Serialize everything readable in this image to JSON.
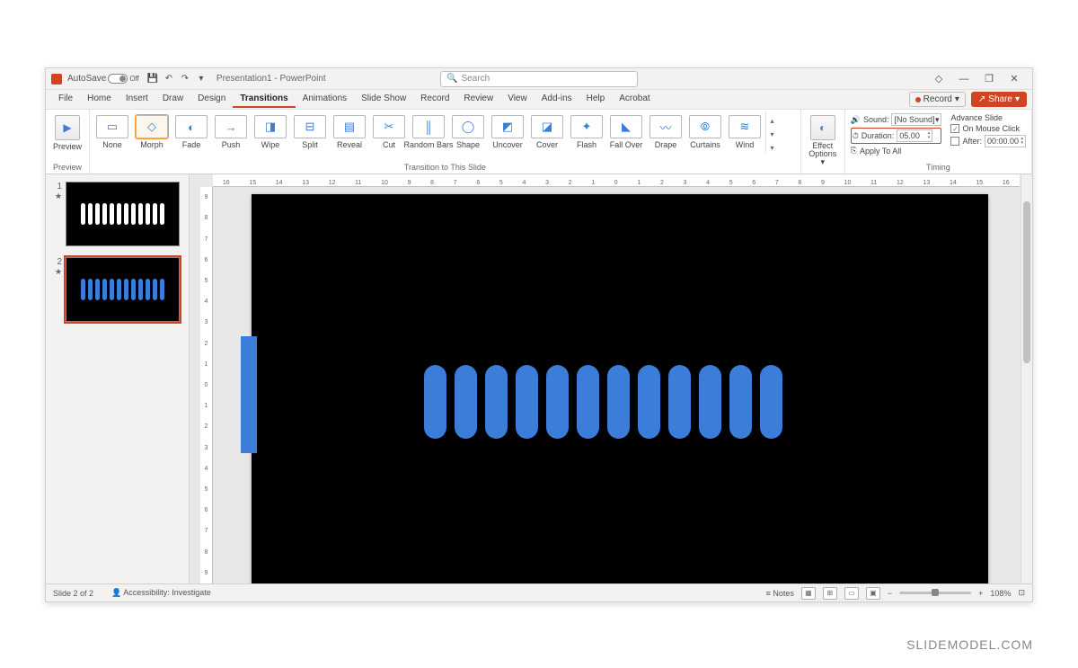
{
  "title_bar": {
    "autosave_label": "AutoSave",
    "autosave_state": "Off",
    "doc_title": "Presentation1 - PowerPoint",
    "search_placeholder": "Search"
  },
  "window_controls": {
    "diamond": "◇",
    "minimize": "—",
    "restore": "❐",
    "close": "✕"
  },
  "menu": {
    "tabs": [
      "File",
      "Home",
      "Insert",
      "Draw",
      "Design",
      "Transitions",
      "Animations",
      "Slide Show",
      "Record",
      "Review",
      "View",
      "Add-ins",
      "Help",
      "Acrobat"
    ],
    "active_index": 5,
    "record_label": "Record",
    "share_label": "Share"
  },
  "ribbon": {
    "preview_group_label": "Preview",
    "preview_btn": "Preview",
    "transitions": [
      {
        "label": "None"
      },
      {
        "label": "Morph"
      },
      {
        "label": "Fade"
      },
      {
        "label": "Push"
      },
      {
        "label": "Wipe"
      },
      {
        "label": "Split"
      },
      {
        "label": "Reveal"
      },
      {
        "label": "Cut"
      },
      {
        "label": "Random Bars"
      },
      {
        "label": "Shape"
      },
      {
        "label": "Uncover"
      },
      {
        "label": "Cover"
      },
      {
        "label": "Flash"
      },
      {
        "label": "Fall Over"
      },
      {
        "label": "Drape"
      },
      {
        "label": "Curtains"
      },
      {
        "label": "Wind"
      }
    ],
    "selected_transition_index": 1,
    "transitions_group_label": "Transition to This Slide",
    "effect_options_label": "Effect Options",
    "sound_label": "Sound:",
    "sound_value": "[No Sound]",
    "duration_label": "Duration:",
    "duration_value": "05.00",
    "apply_all_label": "Apply To All",
    "advance_label": "Advance Slide",
    "on_click_label": "On Mouse Click",
    "on_click_checked": true,
    "after_label": "After:",
    "after_value": "00:00.00",
    "after_checked": false,
    "timing_group_label": "Timing"
  },
  "ruler": {
    "h_ticks": [
      "16",
      "15",
      "14",
      "13",
      "12",
      "11",
      "10",
      "9",
      "8",
      "7",
      "6",
      "5",
      "4",
      "3",
      "2",
      "1",
      "0",
      "1",
      "2",
      "3",
      "4",
      "5",
      "6",
      "7",
      "8",
      "9",
      "10",
      "11",
      "12",
      "13",
      "14",
      "15",
      "16"
    ],
    "v_ticks": [
      "9",
      "8",
      "7",
      "6",
      "5",
      "4",
      "3",
      "2",
      "1",
      "0",
      "1",
      "2",
      "3",
      "4",
      "5",
      "6",
      "7",
      "8",
      "9"
    ]
  },
  "thumbnails": {
    "slides": [
      {
        "num": "1",
        "bar_color": "#ffffff",
        "selected": false
      },
      {
        "num": "2",
        "bar_color": "#3b7dd8",
        "selected": true
      }
    ],
    "bar_count": 12
  },
  "canvas": {
    "bar_count": 12,
    "bar_color": "#3b7dd8",
    "bg_color": "#000000"
  },
  "status": {
    "slide_info": "Slide 2 of 2",
    "lang": "  ",
    "accessibility": "Accessibility: Investigate",
    "notes_label": "Notes",
    "zoom_value": "108%"
  },
  "watermark": "SLIDEMODEL.COM"
}
